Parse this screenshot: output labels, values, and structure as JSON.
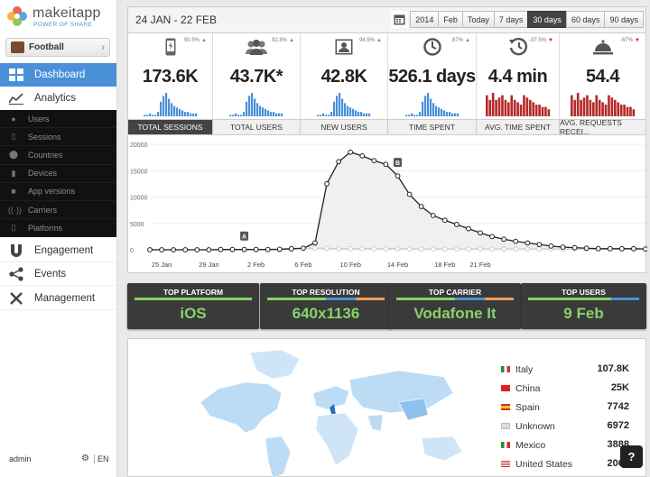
{
  "brand": {
    "name": "makeitapp",
    "tagline": "POWER OF SHARE"
  },
  "app_selector": {
    "name": "Football"
  },
  "nav": {
    "dashboard": "Dashboard",
    "analytics": "Analytics",
    "sub": [
      "Users",
      "Sessions",
      "Countries",
      "Devices",
      "App versions",
      "Carriers",
      "Platforms"
    ],
    "engagement": "Engagement",
    "events": "Events",
    "management": "Management"
  },
  "footer": {
    "user": "admin",
    "lang": "EN"
  },
  "header": {
    "date_range": "24 JAN - 22 FEB",
    "periods": [
      "2014",
      "Feb",
      "Today",
      "7 days",
      "30 days",
      "60 days",
      "90 days"
    ],
    "active_period": "30 days"
  },
  "kpis": [
    {
      "icon": "phone-icon",
      "pct": "90.5%",
      "trend": "up",
      "value": "173.6K"
    },
    {
      "icon": "users-icon",
      "pct": "92.8%",
      "trend": "up",
      "value": "43.7K*"
    },
    {
      "icon": "new-user-icon",
      "pct": "94.5%",
      "trend": "up",
      "value": "42.8K"
    },
    {
      "icon": "clock-icon",
      "pct": "87%",
      "trend": "up",
      "value": "526.1 days"
    },
    {
      "icon": "history-clock-icon",
      "pct": "-37.5%",
      "trend": "down",
      "value": "4.4 min"
    },
    {
      "icon": "service-bell-icon",
      "pct": "-67%",
      "trend": "down",
      "value": "54.4"
    }
  ],
  "tabs": [
    "TOTAL SESSIONS",
    "TOTAL USERS",
    "NEW USERS",
    "TIME SPENT",
    "AVG. TIME SPENT",
    "AVG. REQUESTS RECEI..."
  ],
  "active_tab": "TOTAL SESSIONS",
  "chart_data": {
    "type": "line",
    "ylim": [
      0,
      20000
    ],
    "yticks": [
      "0",
      "5000",
      "10000",
      "15000",
      "20000"
    ],
    "xticks": [
      {
        "label": "25 Jan",
        "index": 1
      },
      {
        "label": "29 Jan",
        "index": 5
      },
      {
        "label": "2 Feb",
        "index": 9
      },
      {
        "label": "6 Feb",
        "index": 13
      },
      {
        "label": "10 Feb",
        "index": 17
      },
      {
        "label": "14 Feb",
        "index": 21
      },
      {
        "label": "18 Feb",
        "index": 25
      },
      {
        "label": "21 Feb",
        "index": 28
      }
    ],
    "series": [
      {
        "values": [
          0,
          0,
          0,
          0,
          0,
          0,
          50,
          50,
          50,
          50,
          50,
          100,
          200,
          300,
          1300,
          12500,
          16700,
          18500,
          17800,
          16900,
          16200,
          14000,
          10500,
          8200,
          6500,
          5600,
          4800,
          4000,
          3200,
          2500,
          2000,
          1600,
          1300,
          1000,
          700,
          500,
          400,
          300,
          200,
          200,
          200,
          200,
          150
        ]
      },
      {
        "values": [
          0,
          0,
          0,
          0,
          0,
          0,
          0,
          0,
          0,
          0,
          0,
          0,
          100,
          300,
          300,
          250,
          200,
          200,
          200,
          200,
          200,
          200,
          150,
          150,
          150,
          150,
          150,
          150,
          150,
          150,
          150,
          150,
          150,
          150,
          150,
          150,
          150,
          150,
          150,
          150,
          150,
          150,
          150
        ]
      }
    ],
    "annotations": [
      {
        "label": "A",
        "index": 8
      },
      {
        "label": "B",
        "index": 21
      }
    ]
  },
  "cards": [
    {
      "title": "TOP PLATFORM",
      "value": "iOS"
    },
    {
      "title": "TOP RESOLUTION",
      "value": "640x1136"
    },
    {
      "title": "TOP CARRIER",
      "value": "Vodafone It"
    },
    {
      "title": "TOP USERS",
      "value": "9 Feb"
    }
  ],
  "countries": [
    {
      "name": "Italy",
      "value": "107.8K"
    },
    {
      "name": "China",
      "value": "25K"
    },
    {
      "name": "Spain",
      "value": "7742"
    },
    {
      "name": "Unknown",
      "value": "6972"
    },
    {
      "name": "Mexico",
      "value": "3888"
    },
    {
      "name": "United States",
      "value": "2061"
    }
  ],
  "help": "?"
}
